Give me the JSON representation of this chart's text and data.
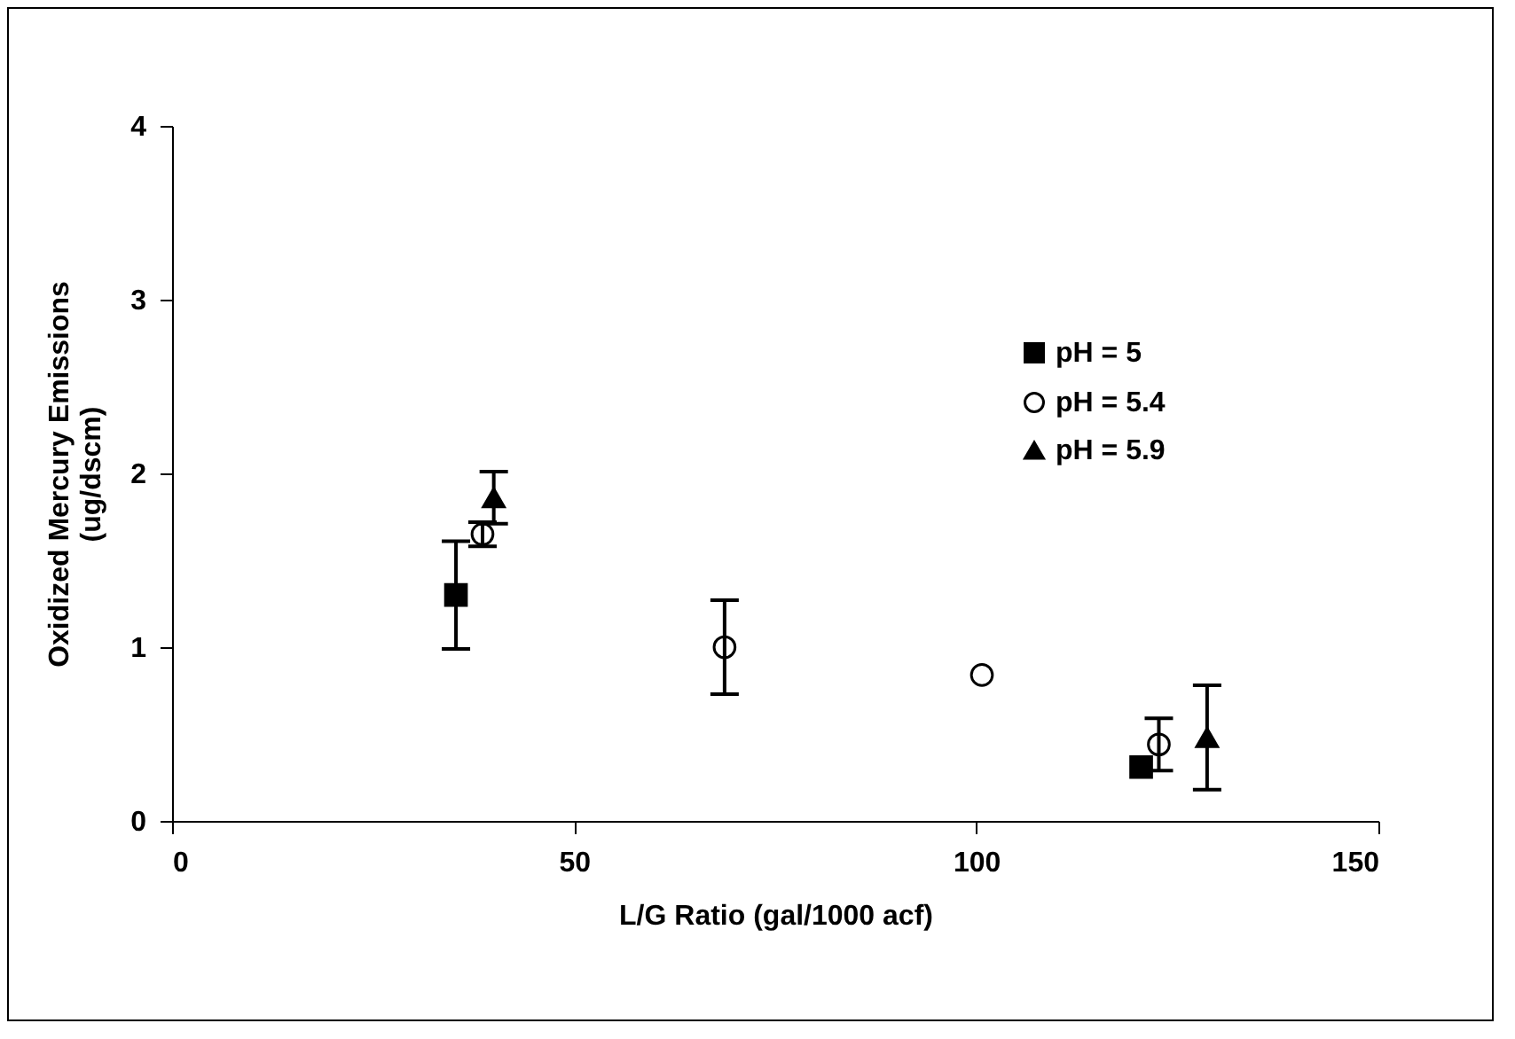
{
  "chart_data": {
    "type": "scatter",
    "xlabel": "L/G Ratio (gal/1000 acf)",
    "ylabel": "Oxidized Mercury Emissions\n(ug/dscm)",
    "xlim": [
      0,
      150
    ],
    "xticks": [
      0,
      50,
      100,
      150
    ],
    "ylim": [
      0,
      4
    ],
    "yticks": [
      0,
      1,
      2,
      3,
      4
    ],
    "grid": false,
    "legend": "top right",
    "series": [
      {
        "name": "pH = 5",
        "color": "#000000",
        "marker": "square",
        "x": [
          35.3,
          120.5
        ],
        "values": [
          1.3,
          0.31
        ],
        "errors": [
          [
            0.99,
            1.61
          ],
          null
        ]
      },
      {
        "name": "pH = 5.4",
        "color": "#000000",
        "marker": "circle",
        "x": [
          38.6,
          68.7,
          100.7,
          122.7
        ],
        "values": [
          1.65,
          1.0,
          0.84,
          0.44
        ],
        "errors": [
          0.07,
          0.27,
          null,
          0.15
        ]
      },
      {
        "name": "pH = 5.9",
        "color": "#000000",
        "marker": "triangle",
        "x": [
          40.0,
          128.7
        ],
        "values": [
          1.86,
          0.48
        ],
        "errors": [
          0.15,
          0.3
        ]
      }
    ]
  }
}
